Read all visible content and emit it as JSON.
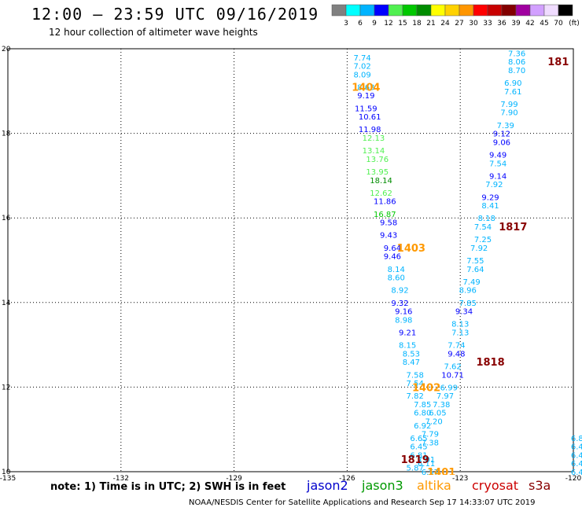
{
  "header": {
    "title": "12:00 — 23:59 UTC 09/16/2019",
    "subtitle": "12 hour collection of altimeter wave heights"
  },
  "color_scale": {
    "ticks": [
      "3",
      "6",
      "9",
      "12",
      "15",
      "18",
      "21",
      "24",
      "27",
      "30",
      "33",
      "36",
      "39",
      "42",
      "45",
      "70"
    ],
    "unit": "(ft)",
    "colors": [
      "#808080",
      "#00ffff",
      "#00b4ff",
      "#0000ff",
      "#50f050",
      "#00c800",
      "#008c00",
      "#ffff00",
      "#ffd200",
      "#ff9600",
      "#ff0000",
      "#c80000",
      "#820000",
      "#a000a0",
      "#d2a0ff",
      "#f0dcff",
      "#000000"
    ]
  },
  "footer": {
    "note": "note:  1) Time is in UTC;  2) SWH is in feet",
    "satellites": [
      {
        "name": "jason2",
        "color": "#0000cc"
      },
      {
        "name": "jason3",
        "color": "#009900"
      },
      {
        "name": "altika",
        "color": "#ff9900"
      },
      {
        "name": "cryosat",
        "color": "#cc0000"
      },
      {
        "name": "s3a",
        "color": "#880000"
      }
    ],
    "credit": "NOAA/NESDIS Center for Satellite Applications and Research   Sep 17 14:33:07 UTC 2019"
  },
  "chart_data": {
    "type": "scatter",
    "title": "12 hour collection of altimeter wave heights",
    "xlabel": "",
    "ylabel": "",
    "xlim": [
      -135,
      -120
    ],
    "ylim": [
      10,
      20
    ],
    "x_ticks": [
      "-135",
      "-132",
      "-129",
      "-126",
      "-123",
      "-120"
    ],
    "y_ticks": [
      "10",
      "12",
      "14",
      "16",
      "18",
      "20"
    ],
    "grid": true,
    "track_times": [
      {
        "label": "1404",
        "lon": -125.5,
        "lat": 19.1,
        "color": "#ff9900"
      },
      {
        "label": "1403",
        "lon": -124.3,
        "lat": 15.3,
        "color": "#ff9900"
      },
      {
        "label": "1402",
        "lon": -123.9,
        "lat": 12.0,
        "color": "#ff9900"
      },
      {
        "label": "1401",
        "lon": -123.5,
        "lat": 10.0,
        "color": "#ff9900"
      },
      {
        "label": "1819",
        "lon": -124.2,
        "lat": 10.3,
        "color": "#880000"
      },
      {
        "label": "1818",
        "lon": -122.2,
        "lat": 12.6,
        "color": "#880000"
      },
      {
        "label": "1817",
        "lon": -121.6,
        "lat": 15.8,
        "color": "#880000"
      },
      {
        "label": "181",
        "lon": -120.4,
        "lat": 19.7,
        "color": "#880000"
      }
    ],
    "points": [
      {
        "lon": -125.6,
        "lat": 19.8,
        "v": "7.74",
        "c": "#00b4ff"
      },
      {
        "lon": -125.6,
        "lat": 19.6,
        "v": "7.02",
        "c": "#00b4ff"
      },
      {
        "lon": -125.6,
        "lat": 19.4,
        "v": "8.09",
        "c": "#00b4ff"
      },
      {
        "lon": -125.5,
        "lat": 19.1,
        "v": "8.63",
        "c": "#00b4ff"
      },
      {
        "lon": -125.5,
        "lat": 18.9,
        "v": "9.19",
        "c": "#0000ff"
      },
      {
        "lon": -125.5,
        "lat": 18.6,
        "v": "11.59",
        "c": "#0000ff"
      },
      {
        "lon": -125.4,
        "lat": 18.4,
        "v": "10.61",
        "c": "#0000ff"
      },
      {
        "lon": -125.4,
        "lat": 18.1,
        "v": "11.98",
        "c": "#0000ff"
      },
      {
        "lon": -125.3,
        "lat": 17.9,
        "v": "12.13",
        "c": "#50f050"
      },
      {
        "lon": -125.3,
        "lat": 17.6,
        "v": "13.14",
        "c": "#50f050"
      },
      {
        "lon": -125.2,
        "lat": 17.4,
        "v": "13.76",
        "c": "#50f050"
      },
      {
        "lon": -125.2,
        "lat": 17.1,
        "v": "13.95",
        "c": "#50f050"
      },
      {
        "lon": -125.1,
        "lat": 16.9,
        "v": "18.14",
        "c": "#008c00"
      },
      {
        "lon": -125.1,
        "lat": 16.6,
        "v": "12.62",
        "c": "#50f050"
      },
      {
        "lon": -125.0,
        "lat": 16.4,
        "v": "11.86",
        "c": "#0000ff"
      },
      {
        "lon": -125.0,
        "lat": 16.1,
        "v": "16.87",
        "c": "#00c800"
      },
      {
        "lon": -124.9,
        "lat": 15.9,
        "v": "9.58",
        "c": "#0000ff"
      },
      {
        "lon": -124.9,
        "lat": 15.6,
        "v": "9.43",
        "c": "#0000ff"
      },
      {
        "lon": -124.8,
        "lat": 15.3,
        "v": "9.64",
        "c": "#0000ff"
      },
      {
        "lon": -124.8,
        "lat": 15.1,
        "v": "9.46",
        "c": "#0000ff"
      },
      {
        "lon": -124.7,
        "lat": 14.8,
        "v": "8.14",
        "c": "#00b4ff"
      },
      {
        "lon": -124.7,
        "lat": 14.6,
        "v": "8.60",
        "c": "#00b4ff"
      },
      {
        "lon": -124.6,
        "lat": 14.3,
        "v": "8.92",
        "c": "#00b4ff"
      },
      {
        "lon": -124.6,
        "lat": 14.0,
        "v": "9.32",
        "c": "#0000ff"
      },
      {
        "lon": -124.5,
        "lat": 13.8,
        "v": "9.16",
        "c": "#0000ff"
      },
      {
        "lon": -124.5,
        "lat": 13.6,
        "v": "8.98",
        "c": "#00b4ff"
      },
      {
        "lon": -124.4,
        "lat": 13.3,
        "v": "9.21",
        "c": "#0000ff"
      },
      {
        "lon": -124.4,
        "lat": 13.0,
        "v": "8.15",
        "c": "#00b4ff"
      },
      {
        "lon": -124.3,
        "lat": 12.8,
        "v": "8.53",
        "c": "#00b4ff"
      },
      {
        "lon": -124.3,
        "lat": 12.6,
        "v": "8.47",
        "c": "#00b4ff"
      },
      {
        "lon": -124.2,
        "lat": 12.3,
        "v": "7.58",
        "c": "#00b4ff"
      },
      {
        "lon": -124.2,
        "lat": 12.1,
        "v": "7.54",
        "c": "#00b4ff"
      },
      {
        "lon": -124.2,
        "lat": 11.8,
        "v": "7.82",
        "c": "#00b4ff"
      },
      {
        "lon": -124.0,
        "lat": 11.6,
        "v": "7.85",
        "c": "#00b4ff"
      },
      {
        "lon": -124.0,
        "lat": 11.4,
        "v": "6.80",
        "c": "#00b4ff"
      },
      {
        "lon": -124.0,
        "lat": 11.1,
        "v": "6.92",
        "c": "#00b4ff"
      },
      {
        "lon": -124.1,
        "lat": 10.8,
        "v": "6.65",
        "c": "#00b4ff"
      },
      {
        "lon": -124.1,
        "lat": 10.6,
        "v": "6.45",
        "c": "#00b4ff"
      },
      {
        "lon": -124.1,
        "lat": 10.4,
        "v": "6.81",
        "c": "#00b4ff"
      },
      {
        "lon": -124.2,
        "lat": 10.1,
        "v": "5.87",
        "c": "#00b4ff"
      },
      {
        "lon": -123.9,
        "lat": 10.3,
        "v": "7.01",
        "c": "#00b4ff"
      },
      {
        "lon": -123.8,
        "lat": 10.0,
        "v": "6.57",
        "c": "#00b4ff"
      },
      {
        "lon": -121.5,
        "lat": 19.9,
        "v": "7.36",
        "c": "#00b4ff"
      },
      {
        "lon": -121.5,
        "lat": 19.7,
        "v": "8.06",
        "c": "#00b4ff"
      },
      {
        "lon": -121.5,
        "lat": 19.5,
        "v": "8.70",
        "c": "#00b4ff"
      },
      {
        "lon": -121.6,
        "lat": 19.2,
        "v": "6.90",
        "c": "#00b4ff"
      },
      {
        "lon": -121.6,
        "lat": 19.0,
        "v": "7.61",
        "c": "#00b4ff"
      },
      {
        "lon": -121.7,
        "lat": 18.7,
        "v": "7.99",
        "c": "#00b4ff"
      },
      {
        "lon": -121.7,
        "lat": 18.5,
        "v": "7.90",
        "c": "#00b4ff"
      },
      {
        "lon": -121.8,
        "lat": 18.2,
        "v": "7.39",
        "c": "#00b4ff"
      },
      {
        "lon": -121.9,
        "lat": 18.0,
        "v": "9.12",
        "c": "#0000ff"
      },
      {
        "lon": -121.9,
        "lat": 17.8,
        "v": "9.06",
        "c": "#0000ff"
      },
      {
        "lon": -122.0,
        "lat": 17.5,
        "v": "9.49",
        "c": "#0000ff"
      },
      {
        "lon": -122.0,
        "lat": 17.3,
        "v": "7.54",
        "c": "#00b4ff"
      },
      {
        "lon": -122.0,
        "lat": 17.0,
        "v": "9.14",
        "c": "#0000ff"
      },
      {
        "lon": -122.1,
        "lat": 16.8,
        "v": "7.92",
        "c": "#00b4ff"
      },
      {
        "lon": -122.2,
        "lat": 16.5,
        "v": "9.29",
        "c": "#0000ff"
      },
      {
        "lon": -122.2,
        "lat": 16.3,
        "v": "8.41",
        "c": "#00b4ff"
      },
      {
        "lon": -122.3,
        "lat": 16.0,
        "v": "8.18",
        "c": "#00b4ff"
      },
      {
        "lon": -122.4,
        "lat": 15.8,
        "v": "7.54",
        "c": "#00b4ff"
      },
      {
        "lon": -122.4,
        "lat": 15.5,
        "v": "7.25",
        "c": "#00b4ff"
      },
      {
        "lon": -122.5,
        "lat": 15.3,
        "v": "7.92",
        "c": "#00b4ff"
      },
      {
        "lon": -122.6,
        "lat": 15.0,
        "v": "7.55",
        "c": "#00b4ff"
      },
      {
        "lon": -122.6,
        "lat": 14.8,
        "v": "7.64",
        "c": "#00b4ff"
      },
      {
        "lon": -122.7,
        "lat": 14.5,
        "v": "7.49",
        "c": "#00b4ff"
      },
      {
        "lon": -122.8,
        "lat": 14.3,
        "v": "8.96",
        "c": "#00b4ff"
      },
      {
        "lon": -122.8,
        "lat": 14.0,
        "v": "7.85",
        "c": "#00b4ff"
      },
      {
        "lon": -122.9,
        "lat": 13.8,
        "v": "9.34",
        "c": "#0000ff"
      },
      {
        "lon": -123.0,
        "lat": 13.5,
        "v": "8.13",
        "c": "#00b4ff"
      },
      {
        "lon": -123.0,
        "lat": 13.3,
        "v": "7.13",
        "c": "#00b4ff"
      },
      {
        "lon": -123.1,
        "lat": 13.0,
        "v": "7.74",
        "c": "#00b4ff"
      },
      {
        "lon": -123.1,
        "lat": 12.8,
        "v": "9.48",
        "c": "#0000ff"
      },
      {
        "lon": -123.2,
        "lat": 12.5,
        "v": "7.62",
        "c": "#00b4ff"
      },
      {
        "lon": -123.2,
        "lat": 12.3,
        "v": "10.71",
        "c": "#0000ff"
      },
      {
        "lon": -123.3,
        "lat": 12.0,
        "v": "6.99",
        "c": "#00b4ff"
      },
      {
        "lon": -123.4,
        "lat": 11.8,
        "v": "7.97",
        "c": "#00b4ff"
      },
      {
        "lon": -123.5,
        "lat": 11.6,
        "v": "7.38",
        "c": "#00b4ff"
      },
      {
        "lon": -123.6,
        "lat": 11.4,
        "v": "6.05",
        "c": "#00b4ff"
      },
      {
        "lon": -123.7,
        "lat": 11.2,
        "v": "7.20",
        "c": "#00b4ff"
      },
      {
        "lon": -123.8,
        "lat": 10.9,
        "v": "7.79",
        "c": "#00b4ff"
      },
      {
        "lon": -123.8,
        "lat": 10.7,
        "v": "7.38",
        "c": "#00b4ff"
      },
      {
        "lon": -123.9,
        "lat": 10.2,
        "v": "6.11",
        "c": "#00b4ff"
      },
      {
        "lon": -119.9,
        "lat": 10.8,
        "v": "6.8",
        "c": "#00b4ff"
      },
      {
        "lon": -119.9,
        "lat": 10.6,
        "v": "6.4",
        "c": "#00b4ff"
      },
      {
        "lon": -119.9,
        "lat": 10.4,
        "v": "6.4",
        "c": "#00b4ff"
      },
      {
        "lon": -119.9,
        "lat": 10.2,
        "v": "6.4",
        "c": "#00b4ff"
      },
      {
        "lon": -119.9,
        "lat": 10.0,
        "v": "6.4",
        "c": "#00b4ff"
      }
    ]
  }
}
